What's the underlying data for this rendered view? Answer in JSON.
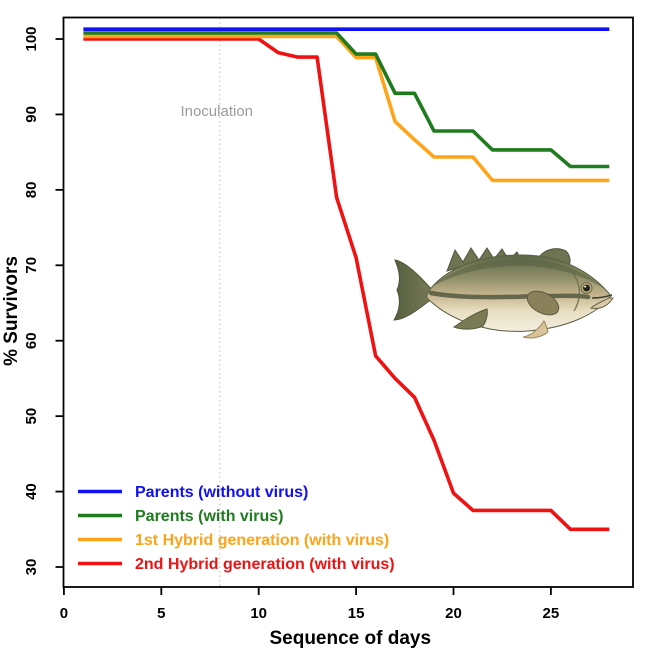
{
  "figure": {
    "background": "#ffffff",
    "axis_color": "#000000",
    "fish_alt": "largemouth-bass-illustration"
  },
  "chart_data": {
    "type": "line",
    "title": "",
    "xlabel": "Sequence of days",
    "ylabel": "% Survivors",
    "x_ticks": [
      0,
      5,
      10,
      15,
      20,
      25
    ],
    "y_ticks": [
      30,
      40,
      50,
      60,
      70,
      80,
      90,
      100
    ],
    "xlim": [
      0,
      29.2
    ],
    "ylim": [
      27.4,
      102.9
    ],
    "grid": false,
    "legend_position": "bottom-left",
    "days": [
      1,
      2,
      3,
      4,
      5,
      6,
      7,
      8,
      9,
      10,
      11,
      12,
      13,
      14,
      15,
      16,
      17,
      18,
      19,
      20,
      21,
      22,
      23,
      24,
      25,
      26,
      27,
      28
    ],
    "series": [
      {
        "name": "Parents (without virus)",
        "color": "#1010F5",
        "draw_offset": 1.3,
        "values": [
          100,
          100,
          100,
          100,
          100,
          100,
          100,
          100,
          100,
          100,
          100,
          100,
          100,
          100,
          100,
          100,
          100,
          100,
          100,
          100,
          100,
          100,
          100,
          100,
          100,
          100,
          100,
          100
        ]
      },
      {
        "name": "Parents (with virus)",
        "color": "#1E7B1E",
        "draw_offset": 0.8,
        "values": [
          100,
          100,
          100,
          100,
          100,
          100,
          100,
          100,
          100,
          100,
          100,
          100,
          100,
          100,
          97.2,
          97.2,
          92,
          92,
          87,
          87,
          87,
          84.5,
          84.5,
          84.5,
          84.5,
          82.3,
          82.3,
          82.3
        ]
      },
      {
        "name": "1st Hybrid generation (with virus)",
        "color": "#FFA319",
        "draw_offset": 0.35,
        "values": [
          100,
          100,
          100,
          100,
          100,
          100,
          100,
          100,
          100,
          100,
          100,
          100,
          100,
          100,
          97.2,
          97.2,
          88.7,
          86.3,
          84,
          84,
          84,
          80.9,
          80.9,
          80.9,
          80.9,
          80.9,
          80.9,
          80.9
        ]
      },
      {
        "name": "2nd Hybrid generation (with virus)",
        "color": "#F01212",
        "draw_offset": 0,
        "values": [
          100,
          100,
          100,
          100,
          100,
          100,
          100,
          100,
          100,
          100,
          98.2,
          97.6,
          97.6,
          79,
          71,
          58,
          55,
          52.5,
          46.8,
          39.8,
          37.5,
          37.5,
          37.5,
          37.5,
          37.5,
          35,
          35,
          35
        ]
      }
    ],
    "annotation": {
      "text": "Inoculation",
      "day": 8,
      "text_y": 89.8,
      "text_color": "#9C9C9C",
      "line_color": "#C6C6C6",
      "line_style": "dotted"
    }
  }
}
